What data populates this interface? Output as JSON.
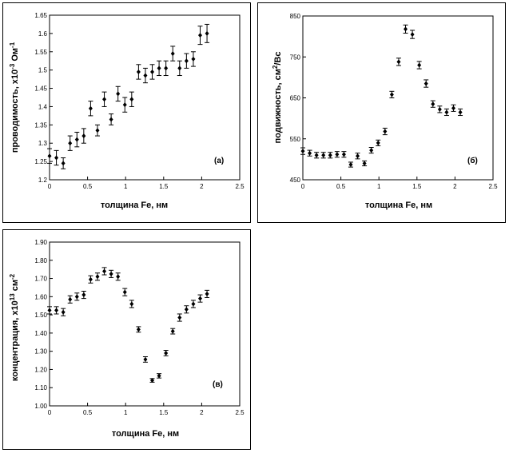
{
  "chart_data": [
    {
      "panel": "a",
      "type": "scatter",
      "marker_label": "(а)",
      "xlabel": "толщина Fe, нм",
      "ylabel_parts": [
        "проводимость, x10",
        "-3",
        " Ом",
        "-1"
      ],
      "xlim": [
        0,
        2.5
      ],
      "ylim": [
        1.2,
        1.65
      ],
      "xticks": [
        0,
        0.5,
        1,
        1.5,
        2,
        2.5
      ],
      "xtick_labels": [
        "0",
        "0.5",
        "1",
        "1.5",
        "2",
        "2.5"
      ],
      "yticks": [
        1.2,
        1.25,
        1.3,
        1.35,
        1.4,
        1.45,
        1.5,
        1.55,
        1.6,
        1.65
      ],
      "ytick_labels": [
        "1.2",
        "1.25",
        "1.3",
        "1.35",
        "1.4",
        "1.45",
        "1.5",
        "1.55",
        "1.6",
        "1.65"
      ],
      "grid": false,
      "points": [
        {
          "x": 0.0,
          "y": 1.265,
          "err": 0.02
        },
        {
          "x": 0.09,
          "y": 1.26,
          "err": 0.02
        },
        {
          "x": 0.18,
          "y": 1.245,
          "err": 0.015
        },
        {
          "x": 0.27,
          "y": 1.3,
          "err": 0.02
        },
        {
          "x": 0.36,
          "y": 1.31,
          "err": 0.02
        },
        {
          "x": 0.45,
          "y": 1.32,
          "err": 0.02
        },
        {
          "x": 0.54,
          "y": 1.395,
          "err": 0.02
        },
        {
          "x": 0.63,
          "y": 1.335,
          "err": 0.015
        },
        {
          "x": 0.72,
          "y": 1.42,
          "err": 0.02
        },
        {
          "x": 0.81,
          "y": 1.365,
          "err": 0.015
        },
        {
          "x": 0.9,
          "y": 1.435,
          "err": 0.02
        },
        {
          "x": 0.99,
          "y": 1.405,
          "err": 0.02
        },
        {
          "x": 1.08,
          "y": 1.42,
          "err": 0.02
        },
        {
          "x": 1.17,
          "y": 1.495,
          "err": 0.02
        },
        {
          "x": 1.26,
          "y": 1.485,
          "err": 0.02
        },
        {
          "x": 1.35,
          "y": 1.495,
          "err": 0.02
        },
        {
          "x": 1.44,
          "y": 1.505,
          "err": 0.02
        },
        {
          "x": 1.53,
          "y": 1.505,
          "err": 0.02
        },
        {
          "x": 1.62,
          "y": 1.545,
          "err": 0.02
        },
        {
          "x": 1.71,
          "y": 1.505,
          "err": 0.02
        },
        {
          "x": 1.8,
          "y": 1.525,
          "err": 0.02
        },
        {
          "x": 1.89,
          "y": 1.53,
          "err": 0.02
        },
        {
          "x": 1.98,
          "y": 1.595,
          "err": 0.025
        },
        {
          "x": 2.07,
          "y": 1.6,
          "err": 0.025
        }
      ]
    },
    {
      "panel": "b",
      "type": "scatter",
      "marker_label": "(б)",
      "xlabel": "толщина Fe, нм",
      "ylabel_parts": [
        "подвижность, см",
        "2",
        "/Вс",
        ""
      ],
      "xlim": [
        0,
        2.5
      ],
      "ylim": [
        450,
        850
      ],
      "xticks": [
        0,
        0.5,
        1,
        1.5,
        2,
        2.5
      ],
      "xtick_labels": [
        "0",
        "0.5",
        "1",
        "1.5",
        "2",
        "2.5"
      ],
      "yticks": [
        450,
        550,
        650,
        750,
        850
      ],
      "ytick_labels": [
        "450",
        "550",
        "650",
        "750",
        "850"
      ],
      "grid": false,
      "points": [
        {
          "x": 0.0,
          "y": 520,
          "err": 8
        },
        {
          "x": 0.09,
          "y": 515,
          "err": 7
        },
        {
          "x": 0.18,
          "y": 510,
          "err": 7
        },
        {
          "x": 0.27,
          "y": 510,
          "err": 7
        },
        {
          "x": 0.36,
          "y": 510,
          "err": 7
        },
        {
          "x": 0.45,
          "y": 512,
          "err": 7
        },
        {
          "x": 0.54,
          "y": 512,
          "err": 7
        },
        {
          "x": 0.63,
          "y": 487,
          "err": 6
        },
        {
          "x": 0.72,
          "y": 508,
          "err": 7
        },
        {
          "x": 0.81,
          "y": 490,
          "err": 6
        },
        {
          "x": 0.9,
          "y": 522,
          "err": 7
        },
        {
          "x": 0.99,
          "y": 540,
          "err": 7
        },
        {
          "x": 1.08,
          "y": 568,
          "err": 8
        },
        {
          "x": 1.17,
          "y": 658,
          "err": 8
        },
        {
          "x": 1.26,
          "y": 738,
          "err": 9
        },
        {
          "x": 1.35,
          "y": 818,
          "err": 10
        },
        {
          "x": 1.44,
          "y": 805,
          "err": 10
        },
        {
          "x": 1.53,
          "y": 730,
          "err": 9
        },
        {
          "x": 1.62,
          "y": 685,
          "err": 9
        },
        {
          "x": 1.71,
          "y": 635,
          "err": 8
        },
        {
          "x": 1.8,
          "y": 622,
          "err": 8
        },
        {
          "x": 1.89,
          "y": 615,
          "err": 8
        },
        {
          "x": 1.98,
          "y": 625,
          "err": 8
        },
        {
          "x": 2.07,
          "y": 615,
          "err": 8
        }
      ]
    },
    {
      "panel": "c",
      "type": "scatter",
      "marker_label": "(в)",
      "xlabel": "толщина Fe, нм",
      "ylabel_parts": [
        "концентрация, x10",
        "13",
        " см",
        "-2"
      ],
      "xlim": [
        0,
        2.5
      ],
      "ylim": [
        1.0,
        1.9
      ],
      "xticks": [
        0,
        0.5,
        1,
        1.5,
        2,
        2.5
      ],
      "xtick_labels": [
        "0",
        "0.5",
        "1",
        "1.5",
        "2",
        "2.5"
      ],
      "yticks": [
        1.0,
        1.1,
        1.2,
        1.3,
        1.4,
        1.5,
        1.6,
        1.7,
        1.8,
        1.9
      ],
      "ytick_labels": [
        "1.00",
        "1.10",
        "1.20",
        "1.30",
        "1.40",
        "1.50",
        "1.60",
        "1.70",
        "1.80",
        "1.90"
      ],
      "grid": false,
      "points": [
        {
          "x": 0.0,
          "y": 1.525,
          "err": 0.02
        },
        {
          "x": 0.09,
          "y": 1.525,
          "err": 0.02
        },
        {
          "x": 0.18,
          "y": 1.515,
          "err": 0.02
        },
        {
          "x": 0.27,
          "y": 1.585,
          "err": 0.02
        },
        {
          "x": 0.36,
          "y": 1.6,
          "err": 0.02
        },
        {
          "x": 0.45,
          "y": 1.61,
          "err": 0.02
        },
        {
          "x": 0.54,
          "y": 1.695,
          "err": 0.02
        },
        {
          "x": 0.63,
          "y": 1.71,
          "err": 0.02
        },
        {
          "x": 0.72,
          "y": 1.74,
          "err": 0.02
        },
        {
          "x": 0.81,
          "y": 1.725,
          "err": 0.02
        },
        {
          "x": 0.9,
          "y": 1.71,
          "err": 0.02
        },
        {
          "x": 0.99,
          "y": 1.625,
          "err": 0.02
        },
        {
          "x": 1.08,
          "y": 1.56,
          "err": 0.02
        },
        {
          "x": 1.17,
          "y": 1.42,
          "err": 0.015
        },
        {
          "x": 1.26,
          "y": 1.255,
          "err": 0.015
        },
        {
          "x": 1.35,
          "y": 1.14,
          "err": 0.01
        },
        {
          "x": 1.44,
          "y": 1.165,
          "err": 0.012
        },
        {
          "x": 1.53,
          "y": 1.29,
          "err": 0.015
        },
        {
          "x": 1.62,
          "y": 1.41,
          "err": 0.015
        },
        {
          "x": 1.71,
          "y": 1.485,
          "err": 0.02
        },
        {
          "x": 1.8,
          "y": 1.53,
          "err": 0.02
        },
        {
          "x": 1.89,
          "y": 1.56,
          "err": 0.02
        },
        {
          "x": 1.98,
          "y": 1.59,
          "err": 0.02
        },
        {
          "x": 2.07,
          "y": 1.615,
          "err": 0.02
        }
      ]
    }
  ]
}
